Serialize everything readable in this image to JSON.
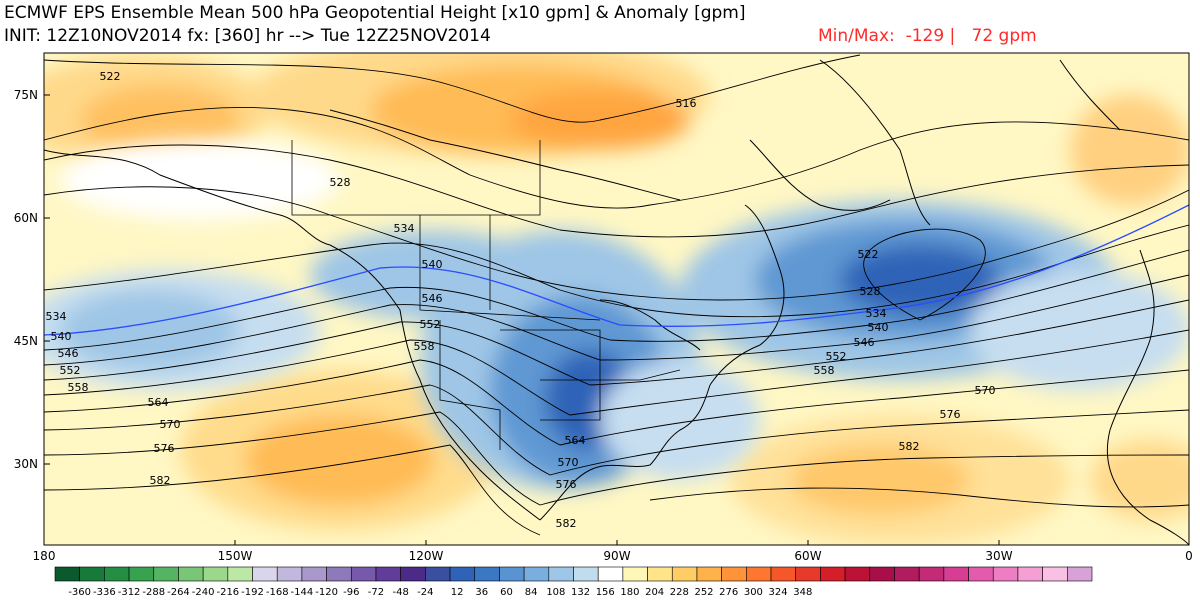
{
  "header": {
    "title_line1": "ECMWF EPS Ensemble Mean 500 hPa Geopotential Height [x10 gpm] & Anomaly [gpm]",
    "title_line2": "INIT: 12Z10NOV2014 fx: [360] hr --> Tue 12Z25NOV2014",
    "minmax": "Min/Max:  -129 |   72 gpm"
  },
  "colors": {
    "minmax": "#ff2a2a",
    "contour": "#000000",
    "contour_540": "#2b4bff"
  },
  "map": {
    "lat_labels": [
      "75N",
      "60N",
      "45N",
      "30N"
    ],
    "lon_labels": [
      "180",
      "150W",
      "120W",
      "90W",
      "60W",
      "30W",
      "0"
    ],
    "contour_labels": [
      "522",
      "516",
      "528",
      "534",
      "540",
      "546",
      "552",
      "558",
      "564",
      "570",
      "576",
      "582"
    ]
  },
  "colorbar": {
    "ticks": [
      "-360",
      "-336",
      "-312",
      "-288",
      "-264",
      "-240",
      "-216",
      "-192",
      "-168",
      "-144",
      "-120",
      "-96",
      "-72",
      "-48",
      "-24",
      "12",
      "36",
      "60",
      "84",
      "108",
      "132",
      "156",
      "180",
      "204",
      "228",
      "252",
      "276",
      "300",
      "324",
      "348"
    ],
    "colors": [
      "#0a5a2e",
      "#177a38",
      "#248f43",
      "#37a24f",
      "#55b461",
      "#78c676",
      "#9bd88c",
      "#bce8a6",
      "#d9d5ea",
      "#c2b8dd",
      "#a898cc",
      "#8e79bb",
      "#7659aa",
      "#613d99",
      "#4c2a88",
      "#3a4fa0",
      "#2f63b7",
      "#3b78c4",
      "#5a93d2",
      "#7aaede",
      "#9dc6e7",
      "#c1dcee",
      "#ffffff",
      "#fff7b8",
      "#ffe48a",
      "#ffcd66",
      "#ffb14a",
      "#ff933a",
      "#ff7630",
      "#f5572a",
      "#e73a2a",
      "#d41f2a",
      "#bd1238",
      "#a80f4a",
      "#b01c5e",
      "#c32b77",
      "#d53e92",
      "#e35bad",
      "#ee7ec3",
      "#f59fd4",
      "#f9c0e4",
      "#d8a2d8"
    ]
  }
}
